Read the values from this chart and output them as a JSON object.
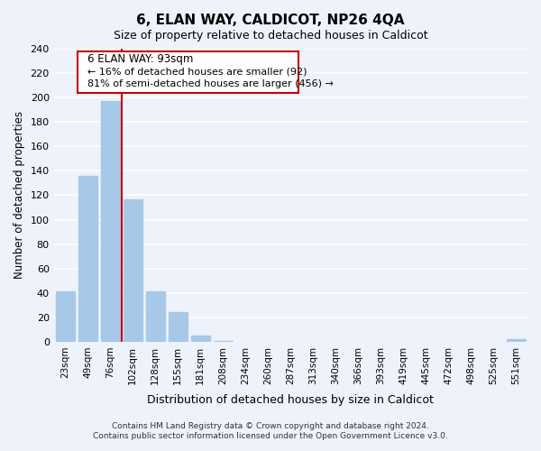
{
  "title": "6, ELAN WAY, CALDICOT, NP26 4QA",
  "subtitle": "Size of property relative to detached houses in Caldicot",
  "xlabel": "Distribution of detached houses by size in Caldicot",
  "ylabel": "Number of detached properties",
  "bar_labels": [
    "23sqm",
    "49sqm",
    "76sqm",
    "102sqm",
    "128sqm",
    "155sqm",
    "181sqm",
    "208sqm",
    "234sqm",
    "260sqm",
    "287sqm",
    "313sqm",
    "340sqm",
    "366sqm",
    "393sqm",
    "419sqm",
    "445sqm",
    "472sqm",
    "498sqm",
    "525sqm",
    "551sqm"
  ],
  "bar_values": [
    41,
    136,
    197,
    117,
    41,
    24,
    5,
    1,
    0,
    0,
    0,
    0,
    0,
    0,
    0,
    0,
    0,
    0,
    0,
    0,
    2
  ],
  "bar_color": "#a8c8e8",
  "vline_pos": 2.5,
  "vline_color": "#cc0000",
  "ylim": [
    0,
    240
  ],
  "yticks": [
    0,
    20,
    40,
    60,
    80,
    100,
    120,
    140,
    160,
    180,
    200,
    220,
    240
  ],
  "annotation_title": "6 ELAN WAY: 93sqm",
  "annotation_line1": "← 16% of detached houses are smaller (92)",
  "annotation_line2": "81% of semi-detached houses are larger (456) →",
  "annotation_box_color": "#ffffff",
  "annotation_box_edge": "#cc0000",
  "footer1": "Contains HM Land Registry data © Crown copyright and database right 2024.",
  "footer2": "Contains public sector information licensed under the Open Government Licence v3.0.",
  "background_color": "#eef2fb",
  "plot_background": "#eef2fb",
  "grid_color": "#ffffff"
}
